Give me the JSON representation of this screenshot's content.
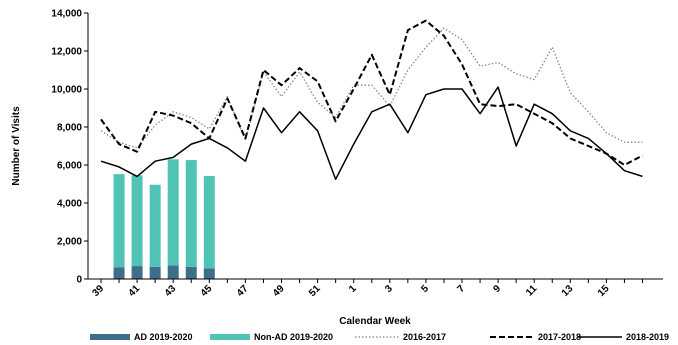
{
  "chart_data": {
    "type": "bar",
    "xlabel": "Calendar Week",
    "ylabel": "Number of Visits",
    "ylim": [
      0,
      14000
    ],
    "yticks": [
      0,
      2000,
      4000,
      6000,
      8000,
      10000,
      12000,
      14000
    ],
    "ytick_labels": [
      "0",
      "2,000",
      "4,000",
      "6,000",
      "8,000",
      "10,000",
      "12,000",
      "14,000"
    ],
    "weeks": [
      39,
      40,
      41,
      42,
      43,
      44,
      45,
      46,
      47,
      48,
      49,
      50,
      51,
      52,
      1,
      2,
      3,
      4,
      5,
      6,
      7,
      8,
      9,
      10,
      11,
      12,
      13,
      14,
      15,
      16,
      17
    ],
    "xtick_labels": [
      "39",
      "41",
      "43",
      "45",
      "47",
      "49",
      "51",
      "1",
      "3",
      "5",
      "7",
      "9",
      "11",
      "13",
      "15"
    ],
    "stacked_bars": {
      "categories": [
        40,
        41,
        42,
        43,
        44,
        45
      ],
      "series": [
        {
          "name": "AD 2019-2020",
          "color": "#3f6e8a",
          "values": [
            620,
            680,
            640,
            720,
            640,
            560
          ]
        },
        {
          "name": "Non-AD 2019-2020",
          "color": "#4fc4b5",
          "values": [
            4900,
            4780,
            4320,
            5580,
            5620,
            4860
          ]
        }
      ]
    },
    "lines": [
      {
        "name": "2016-2017",
        "style": "dotted",
        "color": "#888888",
        "values": [
          7800,
          7200,
          6900,
          8100,
          8800,
          8500,
          7900,
          9600,
          7300,
          10900,
          9600,
          10900,
          9300,
          8500,
          10200,
          10200,
          9100,
          11000,
          12200,
          13200,
          12600,
          11200,
          11400,
          10800,
          10500,
          12200,
          9800,
          8800,
          7700,
          7200,
          7200
        ]
      },
      {
        "name": "2017-2018",
        "style": "dashed",
        "color": "#000000",
        "values": [
          8400,
          7100,
          6700,
          8800,
          8600,
          8200,
          7400,
          9500,
          7400,
          11000,
          10200,
          11100,
          10400,
          8300,
          10000,
          11800,
          9700,
          13100,
          13600,
          12800,
          11300,
          9200,
          9100,
          9200,
          8700,
          8200,
          7400,
          7000,
          6600,
          6000,
          6500
        ]
      },
      {
        "name": "2018-2019",
        "style": "solid",
        "color": "#000000",
        "values": [
          6200,
          5900,
          5400,
          6200,
          6400,
          7100,
          7400,
          6900,
          6200,
          9000,
          7700,
          8800,
          7800,
          5250,
          7100,
          8800,
          9200,
          7700,
          9700,
          10000,
          10000,
          8700,
          10100,
          7000,
          9200,
          8700,
          7800,
          7400,
          6600,
          5700,
          5400
        ]
      }
    ],
    "legend_position": "bottom"
  },
  "legend": [
    {
      "label": "AD 2019-2020",
      "kind": "box",
      "color": "#3f6e8a"
    },
    {
      "label": "Non-AD 2019-2020",
      "kind": "box",
      "color": "#4fc4b5"
    },
    {
      "label": "2016-2017",
      "kind": "dotted",
      "color": "#888888"
    },
    {
      "label": "2017-2018",
      "kind": "dashed",
      "color": "#000000"
    },
    {
      "label": "2018-2019",
      "kind": "solid",
      "color": "#000000"
    }
  ]
}
